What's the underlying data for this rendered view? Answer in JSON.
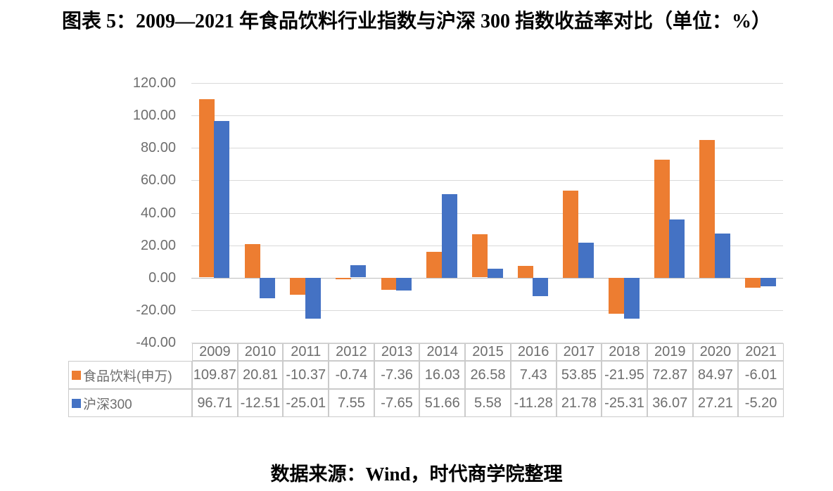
{
  "title": "图表 5：2009—2021 年食品饮料行业指数与沪深 300 指数收益率对比（单位：%）",
  "source_note": "数据来源：Wind，时代商学院整理",
  "colors": {
    "series_food_beverage": "#ED7D31",
    "series_csi300": "#4472C4",
    "gridline": "#D9D9D9",
    "zero_axis_line": "#BDBDBD",
    "table_border": "#CBCBCB",
    "chart_text": "#6E6E6E"
  },
  "chart_data": {
    "type": "bar",
    "title": "图表 5：2009—2021 年食品饮料行业指数与沪深 300 指数收益率对比（单位：%）",
    "xlabel": "",
    "ylabel": "",
    "categories": [
      "2009",
      "2010",
      "2011",
      "2012",
      "2013",
      "2014",
      "2015",
      "2016",
      "2017",
      "2018",
      "2019",
      "2020",
      "2021"
    ],
    "series": [
      {
        "name": "食品饮料(申万)",
        "color": "#ED7D31",
        "values": [
          109.87,
          20.81,
          -10.37,
          -0.74,
          -7.36,
          16.03,
          26.58,
          7.43,
          53.85,
          -21.95,
          72.87,
          84.97,
          -6.01
        ]
      },
      {
        "name": "沪深300",
        "color": "#4472C4",
        "values": [
          96.71,
          -12.51,
          -25.01,
          7.55,
          -7.65,
          51.66,
          5.58,
          -11.28,
          21.78,
          -25.31,
          36.07,
          27.21,
          -5.2
        ]
      }
    ],
    "ylim": [
      -40,
      120
    ],
    "yticks": [
      120,
      100,
      80,
      60,
      40,
      20,
      0,
      -20,
      -40
    ],
    "ytick_decimals": 2,
    "grid": true,
    "legend_position": "data-table-left",
    "data_table_shown": true
  }
}
